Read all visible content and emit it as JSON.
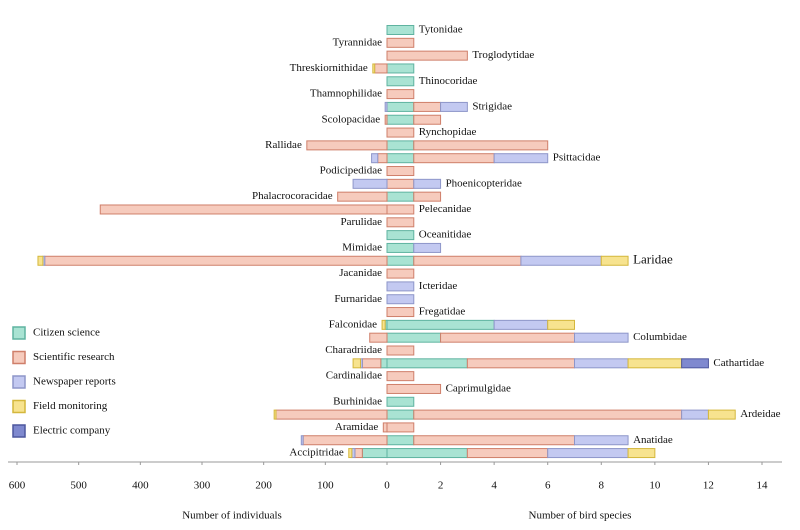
{
  "chart_data": {
    "type": "back-to-back-stacked-bar",
    "categories": [
      "Tytonidae",
      "Tyrannidae",
      "Troglodytidae",
      "Threskiornithidae",
      "Thinocoridae",
      "Thamnophilidae",
      "Strigidae",
      "Scolopacidae",
      "Rynchopidae",
      "Rallidae",
      "Psittacidae",
      "Podicipedidae",
      "Phoenicopteridae",
      "Phalacrocoracidae",
      "Pelecanidae",
      "Parulidae",
      "Oceanitidae",
      "Mimidae",
      "Laridae",
      "Jacanidae",
      "Icteridae",
      "Furnaridae",
      "Fregatidae",
      "Falconidae",
      "Columbidae",
      "Charadriidae",
      "Cathartidae",
      "Cardinalidae",
      "Caprimulgidae",
      "Burhinidae",
      "Ardeidae",
      "Aramidae",
      "Anatidae",
      "Accipitridae"
    ],
    "series": [
      {
        "name": "Citizen science",
        "color": "#a9e3d3",
        "stroke": "#5fb3a0",
        "individuals": [
          0,
          0,
          0,
          0,
          0,
          0,
          0,
          0,
          0,
          0,
          0,
          0,
          0,
          0,
          0,
          0,
          0,
          0,
          0,
          0,
          0,
          0,
          0,
          3,
          0,
          0,
          10,
          0,
          0,
          0,
          0,
          0,
          0,
          40
        ],
        "species": [
          1,
          0,
          0,
          1,
          1,
          0,
          1,
          1,
          0,
          1,
          1,
          0,
          0,
          1,
          0,
          0,
          1,
          1,
          1,
          0,
          0,
          0,
          0,
          4,
          2,
          0,
          3,
          0,
          0,
          1,
          1,
          0,
          1,
          3
        ]
      },
      {
        "name": "Scientific research",
        "color": "#f6cbbd",
        "stroke": "#cf7f6a",
        "individuals": [
          0,
          0,
          0,
          20,
          0,
          0,
          0,
          3,
          0,
          130,
          15,
          0,
          0,
          80,
          465,
          0,
          0,
          0,
          555,
          0,
          0,
          0,
          0,
          0,
          28,
          0,
          30,
          0,
          0,
          0,
          180,
          6,
          136,
          12
        ],
        "species": [
          0,
          1,
          3,
          0,
          0,
          1,
          1,
          1,
          1,
          5,
          3,
          1,
          1,
          1,
          1,
          1,
          0,
          0,
          4,
          1,
          0,
          0,
          1,
          0,
          5,
          1,
          4,
          1,
          2,
          0,
          10,
          1,
          6,
          3
        ]
      },
      {
        "name": "Newspaper reports",
        "color": "#c3c9f1",
        "stroke": "#8e96c9",
        "individuals": [
          0,
          0,
          0,
          0,
          0,
          0,
          3,
          0,
          0,
          0,
          10,
          0,
          55,
          0,
          0,
          0,
          0,
          0,
          3,
          0,
          0,
          0,
          0,
          0,
          0,
          0,
          3,
          0,
          0,
          0,
          0,
          0,
          3,
          5
        ],
        "species": [
          0,
          0,
          0,
          0,
          0,
          0,
          1,
          0,
          0,
          0,
          2,
          0,
          1,
          0,
          0,
          0,
          0,
          1,
          3,
          0,
          1,
          1,
          0,
          2,
          2,
          0,
          2,
          0,
          0,
          0,
          1,
          0,
          2,
          3
        ]
      },
      {
        "name": "Field monitoring",
        "color": "#f7e38f",
        "stroke": "#d4b73c",
        "individuals": [
          0,
          0,
          0,
          3,
          0,
          0,
          0,
          0,
          0,
          0,
          0,
          0,
          0,
          0,
          0,
          0,
          0,
          0,
          8,
          0,
          0,
          0,
          0,
          5,
          0,
          0,
          12,
          0,
          0,
          0,
          3,
          0,
          0,
          5
        ],
        "species": [
          0,
          0,
          0,
          0,
          0,
          0,
          0,
          0,
          0,
          0,
          0,
          0,
          0,
          0,
          0,
          0,
          0,
          0,
          1,
          0,
          0,
          0,
          0,
          1,
          0,
          0,
          2,
          0,
          0,
          0,
          1,
          0,
          0,
          1
        ]
      },
      {
        "name": "Electric company",
        "color": "#7f89cf",
        "stroke": "#4d579e",
        "individuals": [
          0,
          0,
          0,
          0,
          0,
          0,
          0,
          0,
          0,
          0,
          0,
          0,
          0,
          0,
          0,
          0,
          0,
          0,
          0,
          0,
          0,
          0,
          0,
          0,
          0,
          0,
          0,
          0,
          0,
          0,
          0,
          0,
          0,
          0
        ],
        "species": [
          0,
          0,
          0,
          0,
          0,
          0,
          0,
          0,
          0,
          0,
          0,
          0,
          0,
          0,
          0,
          0,
          0,
          0,
          0,
          0,
          0,
          0,
          0,
          0,
          0,
          0,
          1,
          0,
          0,
          0,
          0,
          0,
          0,
          0
        ]
      }
    ],
    "xlabel_left": "Number of individuals",
    "xlim_left": [
      0,
      600
    ],
    "xticks_left": [
      100,
      200,
      300,
      400,
      500,
      600
    ],
    "xlabel": "Number of bird species",
    "xlim": [
      0,
      14
    ],
    "xticks": [
      0,
      2,
      4,
      6,
      8,
      10,
      12,
      14
    ]
  }
}
